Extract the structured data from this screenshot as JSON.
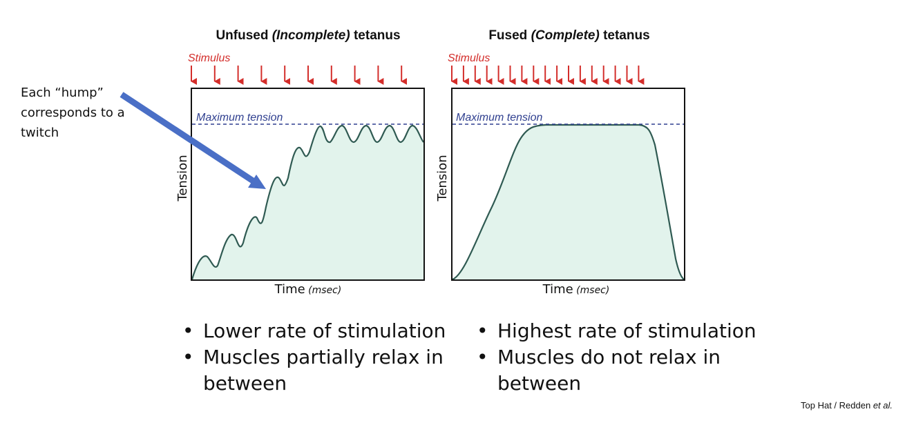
{
  "annotation": {
    "text": "Each “hump” corresponds to a twitch"
  },
  "panels": [
    {
      "title_main": "Unfused",
      "title_italic": "(Incomplete)",
      "title_end": "tetanus",
      "stimulus_label": "Stimulus",
      "max_label": "Maximum tension",
      "y_label": "Tension",
      "x_label": "Time",
      "x_unit": "(msec)",
      "stimulus_count": 10
    },
    {
      "title_main": "Fused",
      "title_italic": "(Complete)",
      "title_end": "tetanus",
      "stimulus_label": "Stimulus",
      "max_label": "Maximum tension",
      "y_label": "Tension",
      "x_label": "Time",
      "x_unit": "(msec)",
      "stimulus_count": 17
    }
  ],
  "bullets": {
    "left": [
      "Lower rate of stimulation",
      "Muscles partially relax in between"
    ],
    "right": [
      "Highest rate of stimulation",
      "Muscles do not relax in between"
    ]
  },
  "credit": {
    "prefix": "Top Hat / Redden ",
    "italic": "et al."
  },
  "colors": {
    "stimulus": "#d32d2a",
    "max_line": "#2f3f8f",
    "curve": "#2f5a52",
    "fill": "#e2f3ec",
    "arrow": "#4a6fc6"
  }
}
